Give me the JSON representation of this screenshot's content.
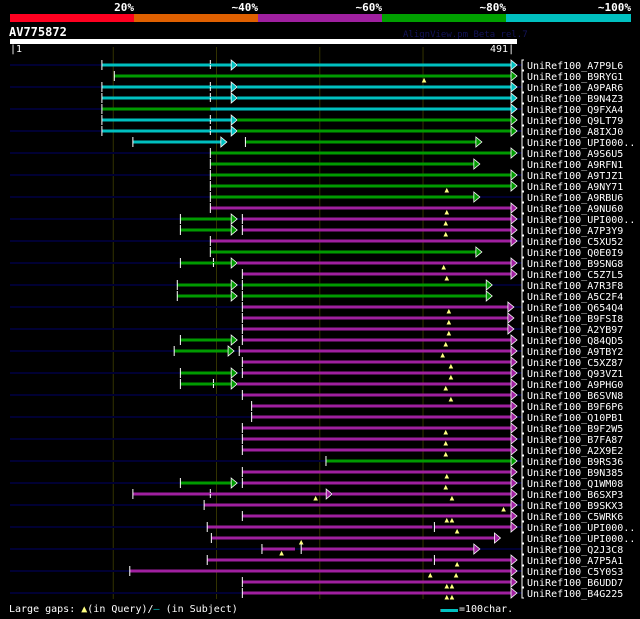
{
  "color_scale": [
    {
      "label": "20%",
      "color": "#ff0020"
    },
    {
      "label": "~40%",
      "color": "#e06000"
    },
    {
      "label": "~60%",
      "color": "#a020a0"
    },
    {
      "label": "~80%",
      "color": "#00a000"
    },
    {
      "label": "~100%",
      "color": "#00c0c0"
    }
  ],
  "query": {
    "name": "AV775872",
    "start": "1",
    "end": "491",
    "length": 491
  },
  "version_text": "AlignView.pm Beta rel.7",
  "colors": {
    "c": "#00c0c0",
    "g": "#009a00",
    "m": "#a020a0",
    "gap": "#ffff80",
    "track": "#000033",
    "grid": "#333300"
  },
  "gridlines": [
    100,
    200,
    300,
    400
  ],
  "alignment": [
    {
      "label": "UniRef100_A7P9L6",
      "segs": [
        [
          89,
          220,
          "c",
          1
        ],
        [
          220,
          491,
          "c",
          1
        ]
      ],
      "marks": [
        194
      ],
      "gaps": []
    },
    {
      "label": "UniRef100_B9RYG1",
      "segs": [
        [
          101,
          491,
          "g",
          1
        ]
      ],
      "marks": [],
      "gaps": [
        401
      ]
    },
    {
      "label": "UniRef100_A9PAR6",
      "segs": [
        [
          89,
          220,
          "c",
          1
        ],
        [
          220,
          491,
          "c",
          1
        ]
      ],
      "marks": [
        194
      ],
      "gaps": []
    },
    {
      "label": "UniRef100_B9N4Z3",
      "segs": [
        [
          89,
          220,
          "c",
          1
        ],
        [
          220,
          491,
          "c",
          1
        ]
      ],
      "marks": [
        194
      ],
      "gaps": []
    },
    {
      "label": "UniRef100_Q9FXA4",
      "segs": [
        [
          89,
          194,
          "g",
          0
        ],
        [
          194,
          491,
          "c",
          1
        ]
      ],
      "marks": [],
      "gaps": []
    },
    {
      "label": "UniRef100_Q9LT79",
      "segs": [
        [
          89,
          220,
          "c",
          1
        ],
        [
          220,
          491,
          "g",
          1
        ]
      ],
      "marks": [
        194
      ],
      "gaps": []
    },
    {
      "label": "UniRef100_A8IXJ0",
      "segs": [
        [
          89,
          220,
          "c",
          1
        ],
        [
          220,
          491,
          "g",
          1
        ]
      ],
      "marks": [
        194
      ],
      "gaps": []
    },
    {
      "label": "UniRef100_UPI000..",
      "segs": [
        [
          119,
          210,
          "c",
          1
        ],
        [
          228,
          457,
          "g",
          1
        ]
      ],
      "marks": [],
      "gaps": []
    },
    {
      "label": "UniRef100_A9S6U5",
      "segs": [
        [
          194,
          491,
          "g",
          1
        ]
      ],
      "marks": [],
      "gaps": []
    },
    {
      "label": "UniRef100_A9RFN1",
      "segs": [
        [
          194,
          455,
          "g",
          1
        ]
      ],
      "marks": [],
      "gaps": []
    },
    {
      "label": "UniRef100_A9TJZ1",
      "segs": [
        [
          194,
          491,
          "g",
          1
        ]
      ],
      "marks": [],
      "gaps": []
    },
    {
      "label": "UniRef100_A9NY71",
      "segs": [
        [
          194,
          491,
          "g",
          1
        ]
      ],
      "marks": [],
      "gaps": [
        423
      ]
    },
    {
      "label": "UniRef100_A9RBU6",
      "segs": [
        [
          194,
          455,
          "g",
          1
        ]
      ],
      "marks": [],
      "gaps": []
    },
    {
      "label": "UniRef100_A9NU60",
      "segs": [
        [
          194,
          491,
          "m",
          1
        ]
      ],
      "marks": [],
      "gaps": [
        423
      ]
    },
    {
      "label": "UniRef100_UPI000..",
      "segs": [
        [
          165,
          220,
          "g",
          1
        ],
        [
          225,
          491,
          "m",
          1
        ]
      ],
      "marks": [],
      "gaps": [
        422
      ]
    },
    {
      "label": "UniRef100_A7P3Y9",
      "segs": [
        [
          165,
          220,
          "g",
          1
        ],
        [
          225,
          491,
          "m",
          1
        ]
      ],
      "marks": [],
      "gaps": [
        422
      ]
    },
    {
      "label": "UniRef100_C5XU52",
      "segs": [
        [
          194,
          491,
          "m",
          1
        ]
      ],
      "marks": [],
      "gaps": []
    },
    {
      "label": "UniRef100_Q0E0I9",
      "segs": [
        [
          194,
          457,
          "g",
          1
        ]
      ],
      "marks": [],
      "gaps": []
    },
    {
      "label": "UniRef100_B9SNG8",
      "segs": [
        [
          165,
          220,
          "g",
          1
        ],
        [
          220,
          491,
          "m",
          1
        ]
      ],
      "marks": [
        197
      ],
      "gaps": [
        420
      ]
    },
    {
      "label": "UniRef100_C5Z7L5",
      "segs": [
        [
          225,
          491,
          "m",
          1
        ]
      ],
      "marks": [],
      "gaps": [
        423
      ]
    },
    {
      "label": "UniRef100_A7R3F8",
      "segs": [
        [
          162,
          220,
          "g",
          1
        ],
        [
          225,
          467,
          "g",
          1
        ]
      ],
      "marks": [],
      "gaps": []
    },
    {
      "label": "UniRef100_A5C2F4",
      "segs": [
        [
          162,
          220,
          "g",
          1
        ],
        [
          225,
          467,
          "g",
          1
        ]
      ],
      "marks": [],
      "gaps": []
    },
    {
      "label": "UniRef100_Q654Q4",
      "segs": [
        [
          225,
          488,
          "m",
          1
        ]
      ],
      "marks": [],
      "gaps": [
        425
      ]
    },
    {
      "label": "UniRef100_B9FSI8",
      "segs": [
        [
          225,
          488,
          "m",
          1
        ]
      ],
      "marks": [],
      "gaps": [
        425
      ]
    },
    {
      "label": "UniRef100_A2YB97",
      "segs": [
        [
          225,
          488,
          "m",
          1
        ]
      ],
      "marks": [],
      "gaps": [
        425
      ]
    },
    {
      "label": "UniRef100_Q84QD5",
      "segs": [
        [
          165,
          220,
          "g",
          1
        ],
        [
          225,
          491,
          "m",
          1
        ]
      ],
      "marks": [],
      "gaps": [
        422
      ]
    },
    {
      "label": "UniRef100_A9TBY2",
      "segs": [
        [
          159,
          217,
          "g",
          1
        ],
        [
          222,
          491,
          "m",
          1
        ]
      ],
      "marks": [],
      "gaps": [
        419
      ]
    },
    {
      "label": "UniRef100_C5XZ87",
      "segs": [
        [
          225,
          491,
          "m",
          1
        ]
      ],
      "marks": [],
      "gaps": [
        427
      ]
    },
    {
      "label": "UniRef100_Q93VZ1",
      "segs": [
        [
          165,
          220,
          "g",
          1
        ],
        [
          225,
          491,
          "m",
          1
        ]
      ],
      "marks": [],
      "gaps": [
        427
      ]
    },
    {
      "label": "UniRef100_A9PHG0",
      "segs": [
        [
          165,
          220,
          "g",
          1
        ],
        [
          220,
          491,
          "m",
          1
        ]
      ],
      "marks": [
        197
      ],
      "gaps": [
        422
      ]
    },
    {
      "label": "UniRef100_B6SVN8",
      "segs": [
        [
          225,
          491,
          "m",
          1
        ]
      ],
      "marks": [],
      "gaps": [
        427
      ]
    },
    {
      "label": "UniRef100_B9F6P6",
      "segs": [
        [
          234,
          491,
          "m",
          1
        ]
      ],
      "marks": [],
      "gaps": []
    },
    {
      "label": "UniRef100_Q10PB1",
      "segs": [
        [
          234,
          491,
          "m",
          1
        ]
      ],
      "marks": [],
      "gaps": []
    },
    {
      "label": "UniRef100_B9F2W5",
      "segs": [
        [
          225,
          491,
          "m",
          1
        ]
      ],
      "marks": [],
      "gaps": [
        422
      ]
    },
    {
      "label": "UniRef100_B7FA87",
      "segs": [
        [
          225,
          491,
          "m",
          1
        ]
      ],
      "marks": [],
      "gaps": [
        422
      ]
    },
    {
      "label": "UniRef100_A2X9E2",
      "segs": [
        [
          225,
          491,
          "m",
          1
        ]
      ],
      "marks": [],
      "gaps": [
        422
      ]
    },
    {
      "label": "UniRef100_B9RS36",
      "segs": [
        [
          306,
          491,
          "g",
          1
        ]
      ],
      "marks": [],
      "gaps": []
    },
    {
      "label": "UniRef100_B9N385",
      "segs": [
        [
          225,
          491,
          "m",
          1
        ]
      ],
      "marks": [],
      "gaps": [
        423
      ]
    },
    {
      "label": "UniRef100_Q1WM08",
      "segs": [
        [
          165,
          220,
          "g",
          1
        ],
        [
          225,
          491,
          "m",
          1
        ]
      ],
      "marks": [],
      "gaps": [
        422
      ]
    },
    {
      "label": "UniRef100_B6SXP3",
      "segs": [
        [
          119,
          312,
          "m",
          1
        ],
        [
          312,
          491,
          "m",
          1
        ]
      ],
      "marks": [
        194
      ],
      "gaps": [
        296,
        428
      ]
    },
    {
      "label": "UniRef100_B9SKX3",
      "segs": [
        [
          188,
          491,
          "m",
          1
        ]
      ],
      "marks": [],
      "gaps": [
        478
      ]
    },
    {
      "label": "UniRef100_C5WRK6",
      "segs": [
        [
          225,
          491,
          "m",
          1
        ]
      ],
      "marks": [],
      "gaps": [
        423,
        428
      ]
    },
    {
      "label": "UniRef100_UPI000..",
      "segs": [
        [
          191,
          409,
          "m",
          0
        ],
        [
          411,
          491,
          "m",
          1
        ]
      ],
      "marks": [],
      "gaps": [
        433
      ]
    },
    {
      "label": "UniRef100_UPI000..",
      "segs": [
        [
          195,
          475,
          "m",
          1
        ]
      ],
      "marks": [],
      "gaps": [
        282
      ]
    },
    {
      "label": "UniRef100_Q2J3C8",
      "segs": [
        [
          244,
          276,
          "m",
          0
        ],
        [
          282,
          455,
          "m",
          1
        ]
      ],
      "marks": [],
      "gaps": [
        263
      ]
    },
    {
      "label": "UniRef100_A7P5A1",
      "segs": [
        [
          191,
          409,
          "m",
          0
        ],
        [
          411,
          491,
          "m",
          1
        ]
      ],
      "marks": [],
      "gaps": [
        433
      ]
    },
    {
      "label": "UniRef100_C5Y0S3",
      "segs": [
        [
          116,
          491,
          "m",
          1
        ]
      ],
      "marks": [],
      "gaps": [
        407,
        432
      ]
    },
    {
      "label": "UniRef100_B6UDD7",
      "segs": [
        [
          225,
          491,
          "m",
          1
        ]
      ],
      "marks": [],
      "gaps": [
        423,
        428
      ]
    },
    {
      "label": "UniRef100_B4G225",
      "segs": [
        [
          225,
          491,
          "m",
          1
        ]
      ],
      "marks": [],
      "gaps": [
        423,
        428
      ]
    }
  ],
  "footer": {
    "prefix": "Large gaps: ",
    "query_marker": "▲",
    "query_text": "(in Query)/",
    "subject_marker": "–",
    "subject_text": " (in Subject)",
    "scale_text": "=100char."
  }
}
